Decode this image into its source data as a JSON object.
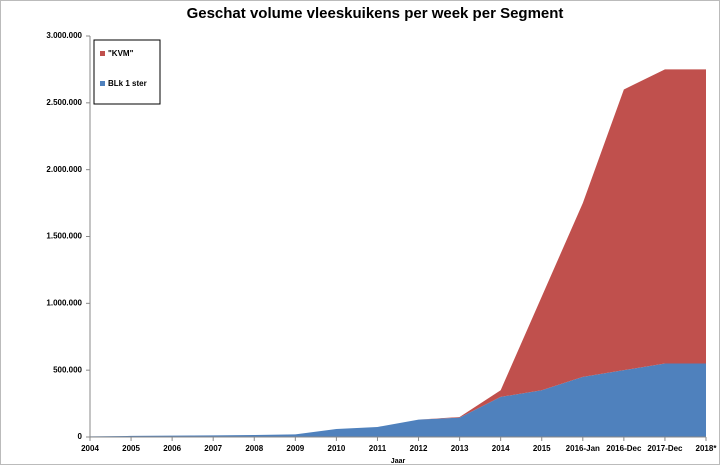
{
  "chart_data": {
    "type": "stacked_area",
    "title": "Geschat volume vleeskuikens per week per Segment",
    "x_label": "Jaar",
    "categories": [
      "2004",
      "2005",
      "2006",
      "2007",
      "2008",
      "2009",
      "2010",
      "2011",
      "2012",
      "2013",
      "2014",
      "2015",
      "2016-Jan",
      "2016-Dec",
      "2017-Dec",
      "2018*"
    ],
    "series": [
      {
        "name": "BLk 1 ster",
        "color": "#4f81bd",
        "values": [
          5000,
          8000,
          10000,
          12000,
          15000,
          20000,
          60000,
          75000,
          130000,
          145000,
          300000,
          350000,
          450000,
          500000,
          550000,
          550000
        ]
      },
      {
        "name": "\"KVM\"",
        "color": "#c0504d",
        "values": [
          0,
          0,
          0,
          0,
          0,
          0,
          0,
          0,
          0,
          5000,
          50000,
          700000,
          1300000,
          2100000,
          2200000,
          2200000
        ]
      }
    ],
    "ylim": [
      0,
      3000000
    ],
    "yticks": [
      0,
      {
        "value": 500000,
        "label": "500.000"
      },
      {
        "value": 1000000,
        "label": "1.000.000"
      },
      {
        "value": 1500000,
        "label": "1.500.000"
      },
      {
        "value": 2000000,
        "label": "2.000.000"
      },
      {
        "value": 2500000,
        "label": "2.500.000"
      },
      {
        "value": 3000000,
        "label": "3.000.000"
      }
    ],
    "legend": "top-left"
  }
}
